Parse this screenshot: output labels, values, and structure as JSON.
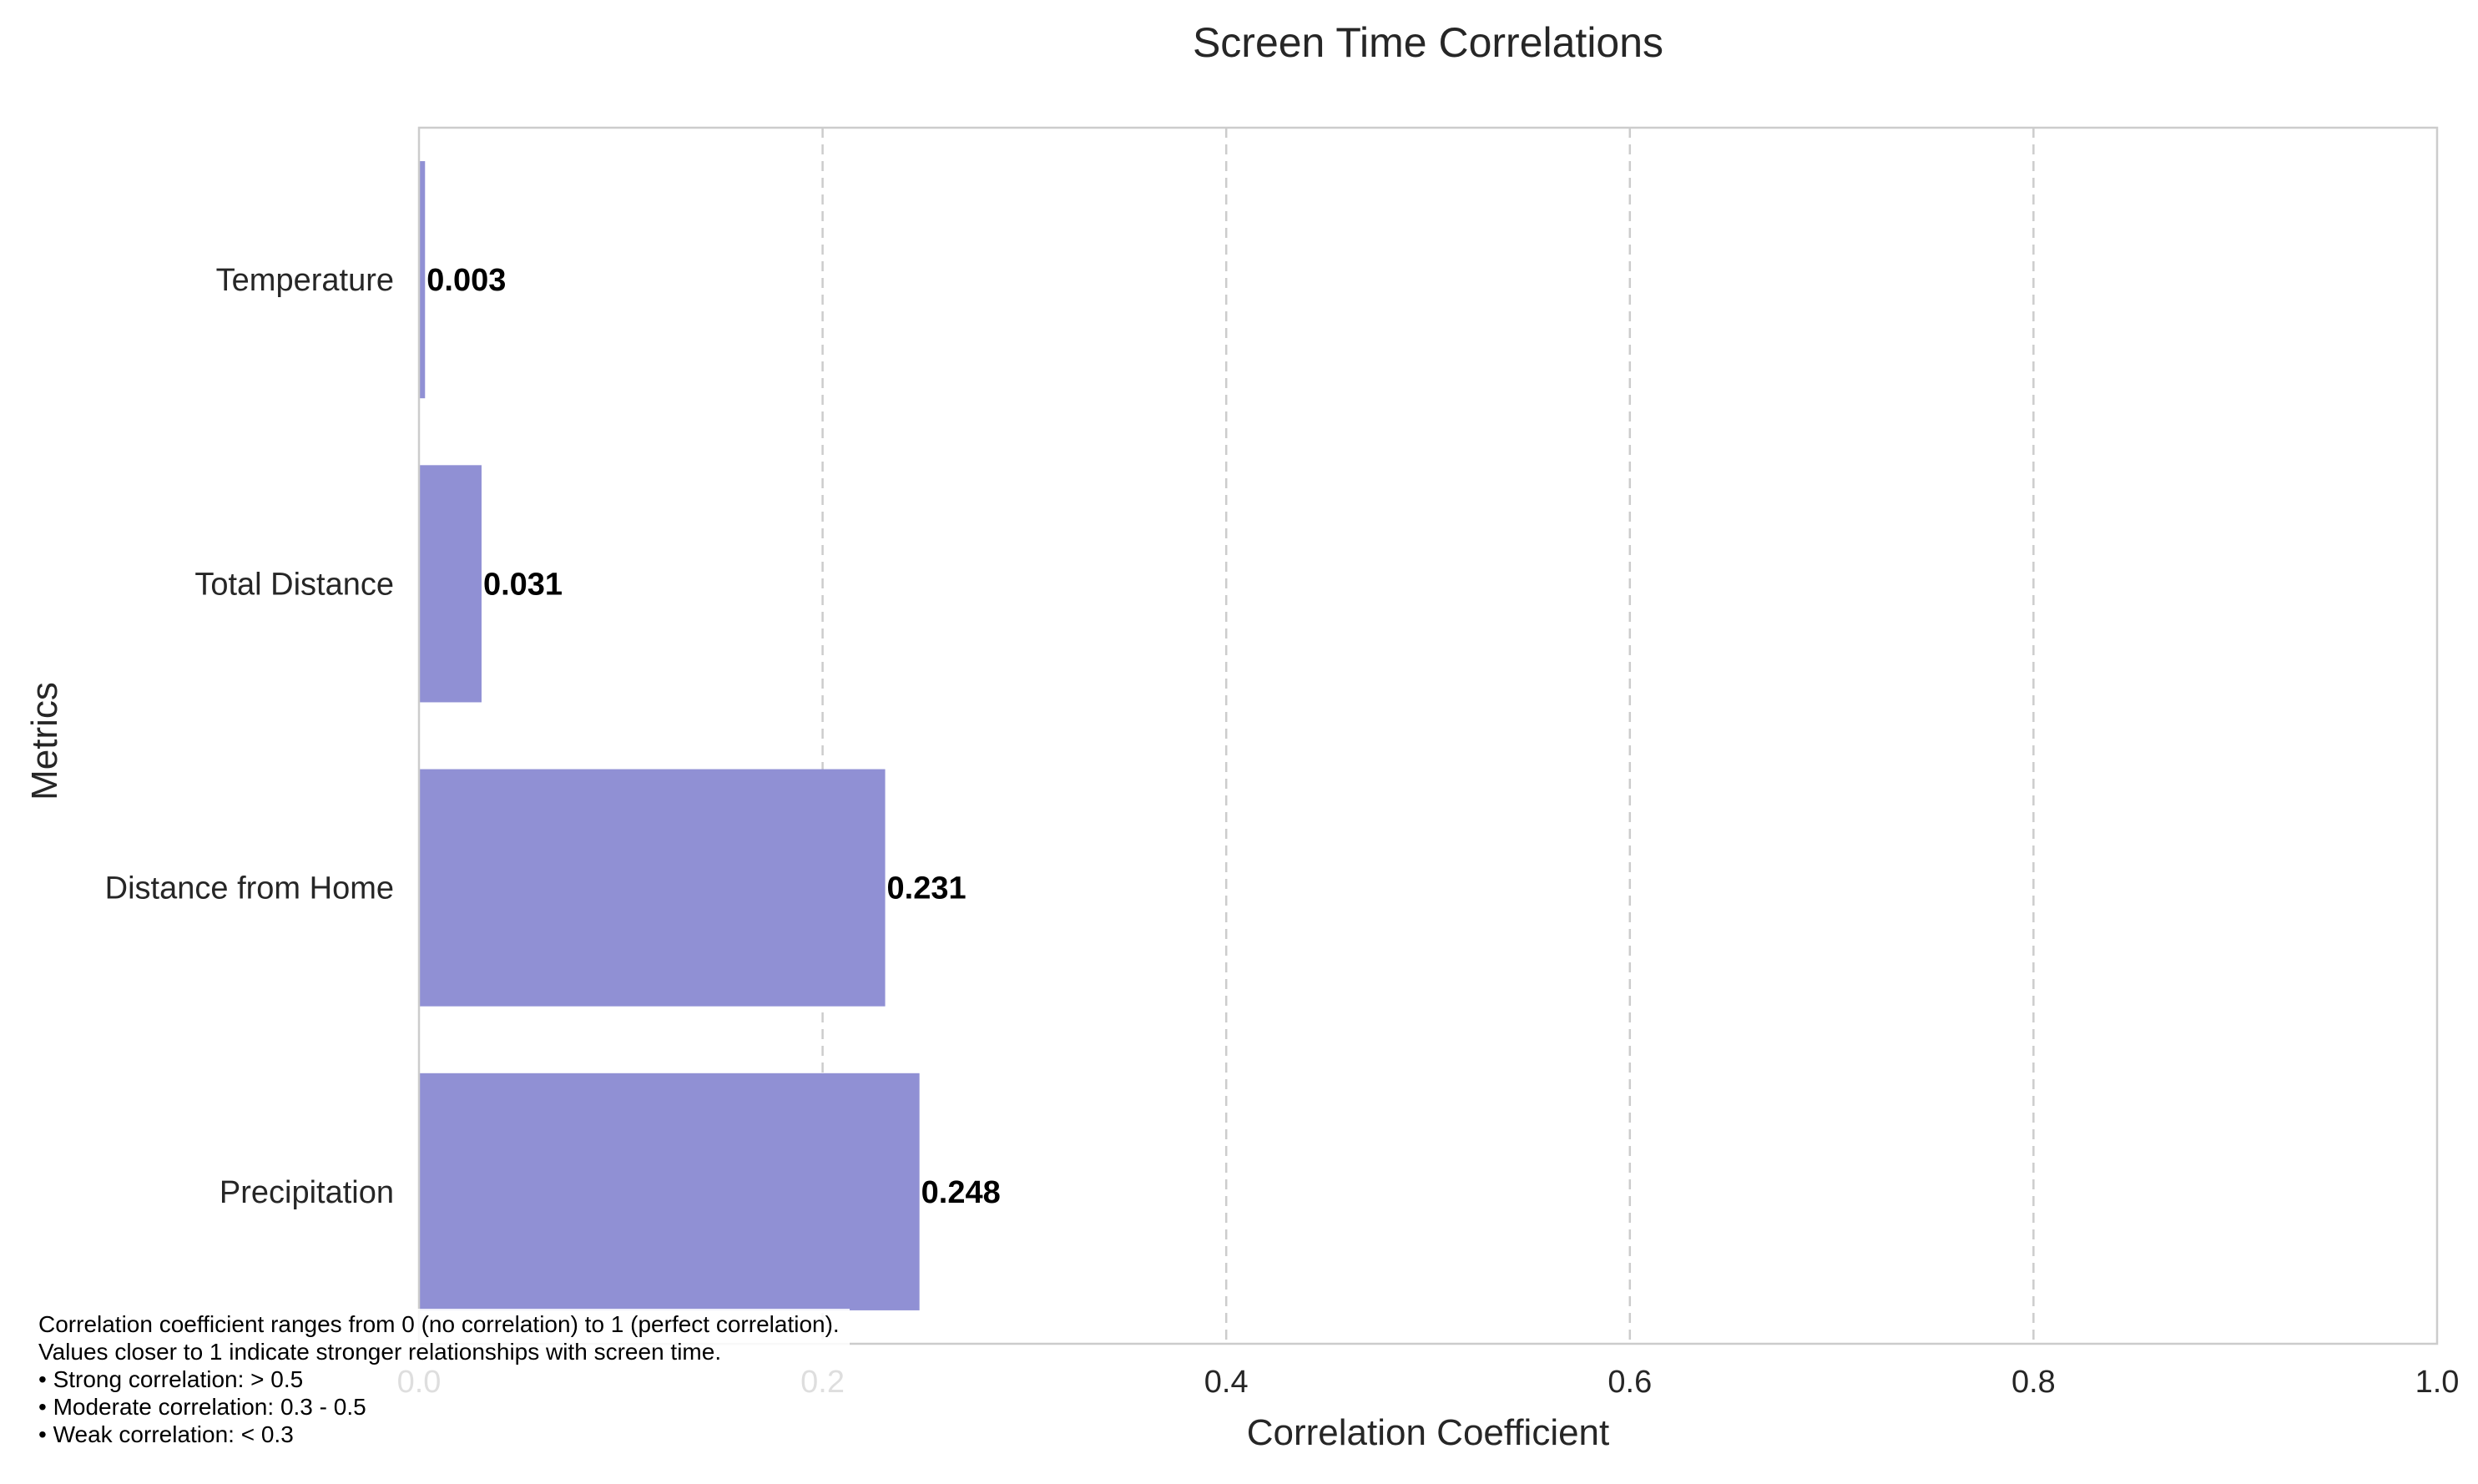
{
  "chart_data": {
    "type": "bar",
    "orientation": "horizontal",
    "title": "Screen Time Correlations",
    "xlabel": "Correlation Coefficient",
    "ylabel": "Metrics",
    "categories": [
      "Temperature",
      "Total Distance",
      "Distance from Home",
      "Precipitation"
    ],
    "values": [
      0.003,
      0.031,
      0.231,
      0.248
    ],
    "value_labels": [
      "0.003",
      "0.031",
      "0.231",
      "0.248"
    ],
    "xlim": [
      0,
      1.0
    ],
    "xticks": [
      0.0,
      0.2,
      0.4,
      0.6,
      0.8,
      1.0
    ],
    "xtick_labels": [
      "0.0",
      "0.2",
      "0.4",
      "0.6",
      "0.8",
      "1.0"
    ],
    "grid": "x-dashed",
    "bar_color": "#9090d4"
  },
  "note": {
    "lines": [
      "Correlation coefficient ranges from 0 (no correlation) to 1 (perfect correlation).",
      "Values closer to 1 indicate stronger relationships with screen time.",
      "• Strong correlation: > 0.5",
      "• Moderate correlation: 0.3 - 0.5",
      "• Weak correlation: < 0.3"
    ]
  }
}
